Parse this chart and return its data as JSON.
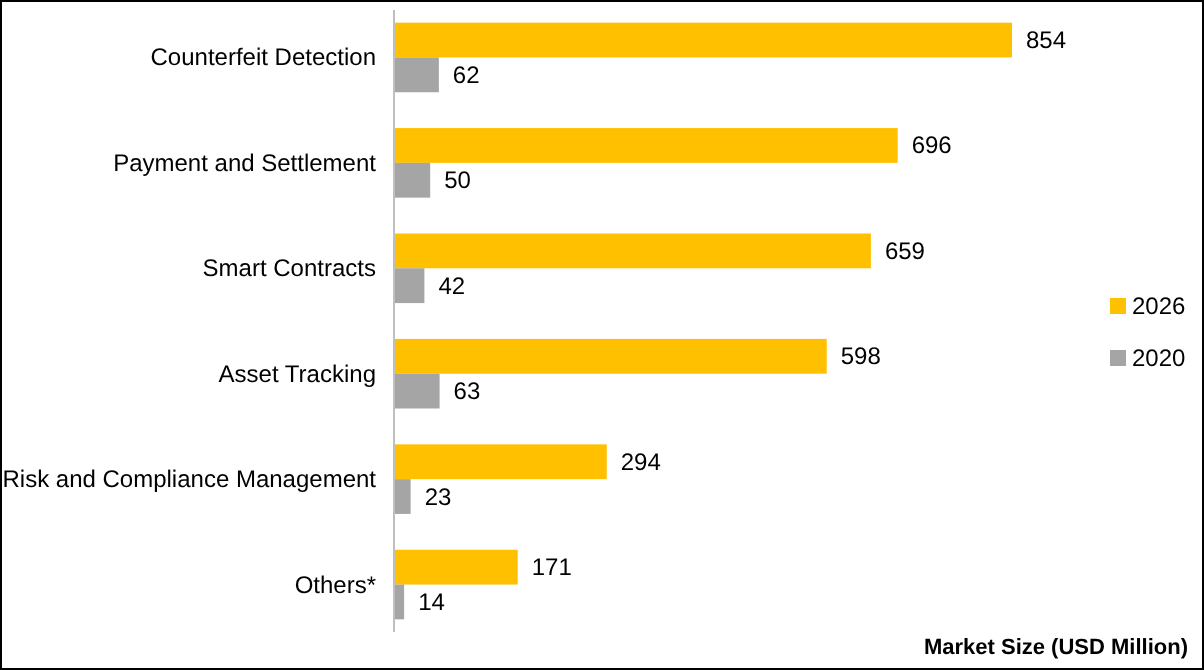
{
  "chart_data": {
    "type": "bar",
    "orientation": "horizontal",
    "categories": [
      "Counterfeit Detection",
      "Payment and Settlement",
      "Smart Contracts",
      "Asset Tracking",
      "Risk and Compliance Management",
      "Others*"
    ],
    "series": [
      {
        "name": "2026",
        "color": "#ffc000",
        "values": [
          854,
          696,
          659,
          598,
          294,
          171
        ]
      },
      {
        "name": "2020",
        "color": "#a5a5a5",
        "values": [
          62,
          50,
          42,
          63,
          23,
          14
        ]
      }
    ],
    "xlabel": "Market Size (USD Million)",
    "data_labels": true,
    "legend": "right",
    "grid": false
  }
}
